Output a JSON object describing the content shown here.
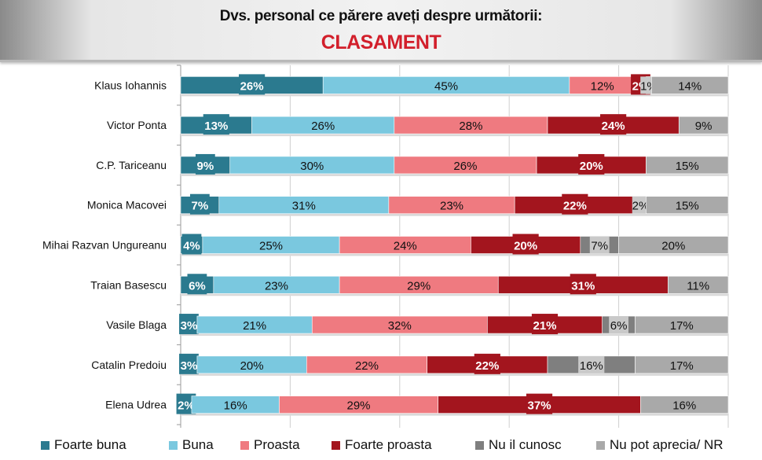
{
  "header": {
    "title": "Dvs. personal ce părere aveți despre următorii:",
    "subtitle": "CLASAMENT"
  },
  "chart_data": {
    "type": "bar",
    "orientation": "horizontal",
    "stacked": true,
    "percent_stacked": true,
    "title": "Dvs. personal ce părere aveți despre următorii: CLASAMENT",
    "xlabel": "",
    "ylabel": "",
    "xlim": [
      0,
      100
    ],
    "grid": true,
    "legend_position": "bottom",
    "categories": [
      "Klaus Iohannis",
      "Victor Ponta",
      "C.P. Tariceanu",
      "Monica Macovei",
      "Mihai Razvan Ungureanu",
      "Traian Basescu",
      "Vasile Blaga",
      "Catalin Predoiu",
      "Elena Udrea"
    ],
    "series": [
      {
        "name": "Foarte buna",
        "color": "#2b7a8f",
        "label_color": "#ffffff",
        "values": [
          26,
          13,
          9,
          7,
          4,
          6,
          3,
          3,
          2
        ]
      },
      {
        "name": "Buna",
        "color": "#7ac8df",
        "label_color": "#111111",
        "values": [
          45,
          26,
          30,
          31,
          25,
          23,
          21,
          20,
          16
        ]
      },
      {
        "name": "Proasta",
        "color": "#ef7a80",
        "label_color": "#111111",
        "values": [
          12,
          28,
          26,
          23,
          24,
          29,
          32,
          22,
          29
        ]
      },
      {
        "name": "Foarte proasta",
        "color": "#a3151e",
        "label_color": "#ffffff",
        "values": [
          2,
          24,
          20,
          22,
          20,
          31,
          21,
          22,
          37
        ]
      },
      {
        "name": "Nu il cunosc",
        "color": "#7f7f7f",
        "label_color": "#111111",
        "values": [
          1,
          0,
          0,
          2,
          7,
          0,
          6,
          16,
          0
        ]
      },
      {
        "name": "Nu pot aprecia/ NR",
        "color": "#a9a9a9",
        "label_color": "#111111",
        "values": [
          14,
          9,
          15,
          15,
          20,
          11,
          17,
          17,
          16
        ]
      }
    ],
    "value_label_suffix": "%"
  }
}
